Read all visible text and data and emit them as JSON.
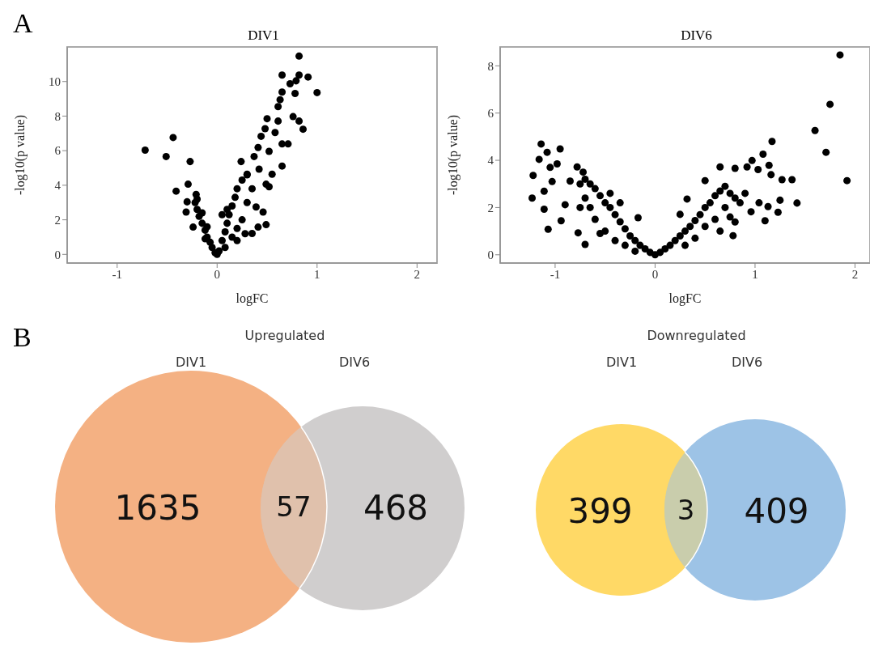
{
  "chart_data": [
    {
      "type": "scatter",
      "title": "DIV1",
      "xlabel": "logFC",
      "ylabel": "-log10(p value)",
      "annotations": [
        "A"
      ],
      "color": "#000000",
      "marker": "circle",
      "xlim": [
        -1.5,
        2.2
      ],
      "ylim": [
        -0.5,
        12
      ],
      "xticks": [
        -1,
        0,
        1,
        2
      ],
      "yticks": [
        0,
        2,
        4,
        6,
        8,
        10
      ],
      "x": [
        0.82,
        0.65,
        0.82,
        0.91,
        0.79,
        0.73,
        1.0,
        0.78,
        0.65,
        0.63,
        0.61,
        0.76,
        0.82,
        0.86,
        0.5,
        0.61,
        0.58,
        0.48,
        0.44,
        0.65,
        0.71,
        0.41,
        0.37,
        0.65,
        0.55,
        0.52,
        0.49,
        0.49,
        0.41,
        0.35,
        0.46,
        0.39,
        0.24,
        0.3,
        0.42,
        0.52,
        -0.72,
        -0.51,
        -0.44,
        -0.27,
        -0.41,
        -0.29,
        -0.21,
        -0.3,
        -0.31,
        -0.24,
        -0.22,
        -0.2,
        -0.18,
        -0.15,
        -0.12,
        -0.1,
        -0.07,
        -0.05,
        -0.02,
        0,
        -0.15,
        -0.2,
        -0.1,
        -0.12,
        0.02,
        0.05,
        0.08,
        0.1,
        0.12,
        0.15,
        0.18,
        0.2,
        0.25,
        0.3,
        0.08,
        0.15,
        0.2,
        0.25,
        0.3,
        0.35,
        0.1,
        0.05,
        0.2,
        0.28
      ],
      "values": [
        11.47,
        10.37,
        10.37,
        10.26,
        10.04,
        9.87,
        9.36,
        9.31,
        9.39,
        8.95,
        8.55,
        7.97,
        7.71,
        7.24,
        7.85,
        7.71,
        7.05,
        7.27,
        6.83,
        6.39,
        6.39,
        6.18,
        5.66,
        5.11,
        4.64,
        3.91,
        4.06,
        1.72,
        1.58,
        1.21,
        2.45,
        2.74,
        5.37,
        4.64,
        4.93,
        5.96,
        6.03,
        5.66,
        6.76,
        5.37,
        3.66,
        4.06,
        3.47,
        3.04,
        2.45,
        1.58,
        3.0,
        2.6,
        2.2,
        1.8,
        1.4,
        1.0,
        0.7,
        0.4,
        0.1,
        0,
        2.4,
        3.2,
        1.6,
        0.9,
        0.2,
        0.8,
        1.3,
        1.8,
        2.3,
        2.8,
        3.3,
        3.8,
        4.3,
        4.6,
        0.4,
        1.0,
        1.5,
        2.0,
        3.0,
        3.8,
        2.6,
        2.3,
        0.8,
        1.2
      ]
    },
    {
      "type": "scatter",
      "title": "DIV6",
      "xlabel": "logFC",
      "ylabel": "-log10(p value)",
      "color": "#000000",
      "marker": "circle",
      "xlim": [
        -1.55,
        2.15
      ],
      "ylim": [
        -0.35,
        8.8
      ],
      "xticks": [
        -1,
        0,
        1,
        2
      ],
      "yticks": [
        0,
        2,
        4,
        6,
        8
      ],
      "x": [
        1.85,
        1.75,
        1.6,
        1.71,
        1.92,
        1.17,
        1.08,
        0.97,
        1.14,
        1.16,
        1.27,
        1.37,
        1.42,
        1.23,
        1.1,
        1.25,
        1.13,
        1.04,
        1.03,
        0.92,
        0.65,
        0.8,
        0.5,
        0.96,
        0.78,
        0.8,
        0.32,
        0.25,
        -0.17,
        0.05,
        0.1,
        0.15,
        0.2,
        0.25,
        0.3,
        0.35,
        0.4,
        0.45,
        0.5,
        0.55,
        0.6,
        0.65,
        0.7,
        0.75,
        0.8,
        0.7,
        0.6,
        0.5,
        0.4,
        0.3,
        0.65,
        0.75,
        0.85,
        0.9,
        -1.14,
        -1.08,
        -0.95,
        -1.16,
        -0.98,
        -1.05,
        -1.22,
        -1.03,
        -1.11,
        -1.23,
        -1.11,
        -1.07,
        -0.94,
        -0.9,
        -0.78,
        -0.72,
        -0.85,
        -0.77,
        -0.7,
        -0.05,
        -0.1,
        -0.15,
        -0.2,
        -0.25,
        -0.3,
        -0.35,
        -0.4,
        -0.45,
        -0.5,
        -0.55,
        -0.6,
        -0.65,
        -0.7,
        -0.75,
        -0.7,
        -0.65,
        -0.6,
        -0.5,
        -0.4,
        -0.3,
        -0.2,
        -0.55,
        -0.35,
        -0.45,
        -0.75,
        0
      ],
      "values": [
        8.46,
        6.37,
        5.26,
        4.34,
        3.14,
        4.8,
        4.26,
        3.99,
        3.79,
        3.39,
        3.18,
        3.18,
        2.19,
        1.8,
        1.44,
        2.31,
        2.04,
        2.2,
        3.61,
        3.72,
        3.72,
        3.66,
        3.14,
        1.82,
        0.81,
        1.39,
        2.36,
        1.71,
        1.57,
        0.1,
        0.25,
        0.4,
        0.6,
        0.8,
        1.0,
        1.2,
        1.45,
        1.7,
        2.0,
        2.2,
        2.5,
        2.7,
        2.9,
        2.6,
        2.4,
        2.0,
        1.5,
        1.2,
        0.7,
        0.4,
        1.0,
        1.6,
        2.2,
        2.6,
        4.69,
        4.34,
        4.48,
        4.04,
        3.85,
        3.7,
        3.36,
        3.1,
        2.69,
        2.4,
        1.93,
        1.08,
        1.44,
        2.12,
        3.72,
        3.5,
        3.12,
        0.93,
        0.44,
        0.1,
        0.25,
        0.4,
        0.6,
        0.8,
        1.1,
        1.4,
        1.7,
        2.0,
        2.2,
        2.5,
        2.8,
        3.0,
        3.2,
        3.0,
        2.4,
        2.0,
        1.5,
        1.0,
        0.6,
        0.4,
        0.15,
        0.9,
        2.2,
        2.6,
        2.0,
        0
      ]
    },
    {
      "type": "other",
      "title": "Upregulated",
      "categories": [
        "DIV1",
        "DIV6"
      ],
      "colors": [
        "#f4b183",
        "#d0cece"
      ],
      "annotations": [
        "B",
        "1635",
        "57",
        "468"
      ]
    },
    {
      "type": "other",
      "title": "Downregulated",
      "categories": [
        "DIV1",
        "DIV6"
      ],
      "colors": [
        "#ffd966",
        "#9dc3e6"
      ],
      "annotations": [
        "399",
        "3",
        "409"
      ]
    }
  ]
}
